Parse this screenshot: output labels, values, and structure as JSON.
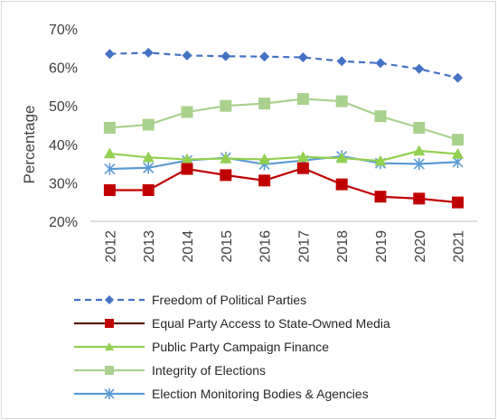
{
  "chart_data": {
    "type": "line",
    "title": "",
    "xlabel": "",
    "ylabel": "Percentage",
    "ylim": [
      20,
      70
    ],
    "y_ticks": [
      "20%",
      "30%",
      "40%",
      "50%",
      "60%",
      "70%"
    ],
    "x": [
      "2012",
      "2013",
      "2014",
      "2015",
      "2016",
      "2017",
      "2018",
      "2019",
      "2020",
      "2021"
    ],
    "grid": false,
    "legend_position": "bottom",
    "series": [
      {
        "name": "Freedom of Political Parties",
        "color": "#4472c4",
        "dash": true,
        "marker": "diamond",
        "values": [
          63.5,
          63.8,
          63.1,
          62.9,
          62.8,
          62.6,
          61.6,
          61.1,
          59.6,
          57.3
        ]
      },
      {
        "name": "Equal Party Access to State-Owned Media",
        "color": "#c00000",
        "dash": false,
        "marker": "square",
        "legend_line_color": "#5c1a0b",
        "values": [
          28.1,
          28.1,
          33.6,
          32.0,
          30.6,
          33.8,
          29.6,
          26.4,
          25.9,
          24.9
        ]
      },
      {
        "name": "Public Party Campaign Finance",
        "color": "#92d050",
        "dash": false,
        "marker": "triangle",
        "values": [
          37.6,
          36.6,
          36.1,
          36.3,
          36.1,
          36.7,
          36.4,
          35.7,
          38.3,
          37.5
        ]
      },
      {
        "name": "Integrity of Elections",
        "color": "#a9d18e",
        "dash": false,
        "marker": "square",
        "values": [
          44.3,
          45.1,
          48.4,
          50.0,
          50.6,
          51.8,
          51.2,
          47.3,
          44.3,
          41.2
        ]
      },
      {
        "name": "Election Monitoring Bodies & Agencies",
        "color": "#5b9bd5",
        "dash": false,
        "marker": "asterisk",
        "values": [
          33.6,
          33.9,
          35.8,
          36.5,
          34.8,
          35.8,
          36.9,
          35.1,
          34.9,
          35.4
        ]
      }
    ]
  }
}
